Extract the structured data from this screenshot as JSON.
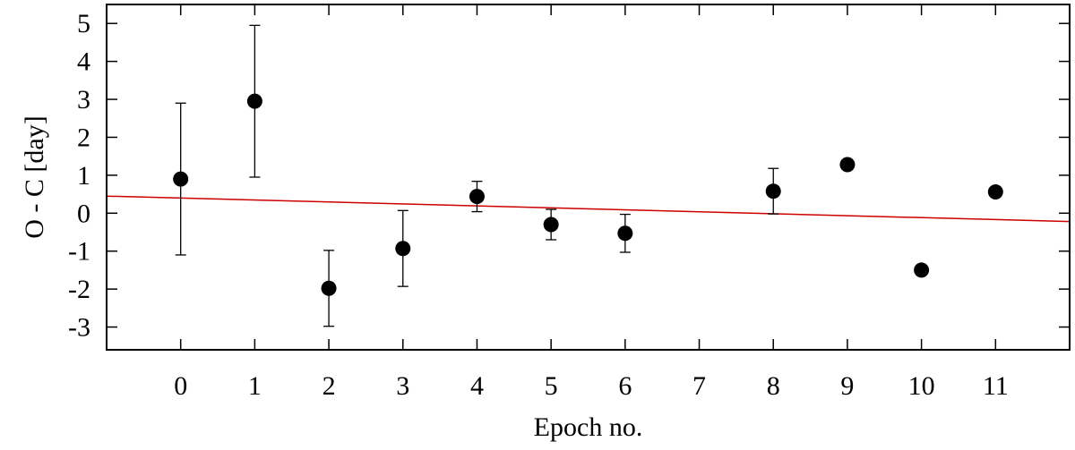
{
  "chart_data": {
    "type": "scatter",
    "title": "",
    "xlabel": "Epoch no.",
    "ylabel": "O - C [day]",
    "xlim": [
      -1,
      12
    ],
    "ylim": [
      -3.6,
      5.5
    ],
    "x_ticks": [
      0,
      1,
      2,
      3,
      4,
      5,
      6,
      7,
      8,
      9,
      10,
      11
    ],
    "y_ticks": [
      -3,
      -2,
      -1,
      0,
      1,
      2,
      3,
      4,
      5
    ],
    "grid": false,
    "legend": "none",
    "series": [
      {
        "marker": "circle",
        "color": "#000000",
        "points": [
          {
            "x": 0,
            "y": 0.9,
            "err": 2.0
          },
          {
            "x": 1,
            "y": 2.95,
            "err": 2.0
          },
          {
            "x": 2,
            "y": -1.98,
            "err": 1.0
          },
          {
            "x": 3,
            "y": -0.93,
            "err": 1.0
          },
          {
            "x": 4,
            "y": 0.44,
            "err": 0.4
          },
          {
            "x": 5,
            "y": -0.3,
            "err": 0.4
          },
          {
            "x": 6,
            "y": -0.53,
            "err": 0.5
          },
          {
            "x": 8,
            "y": 0.58,
            "err": 0.6
          },
          {
            "x": 9,
            "y": 1.28,
            "err": 0
          },
          {
            "x": 10,
            "y": -1.5,
            "err": 0
          },
          {
            "x": 11,
            "y": 0.56,
            "err": 0
          }
        ]
      }
    ],
    "fit_line": {
      "color": "#cc0000",
      "x": [
        -1,
        12
      ],
      "y": [
        0.45,
        -0.22
      ]
    }
  }
}
